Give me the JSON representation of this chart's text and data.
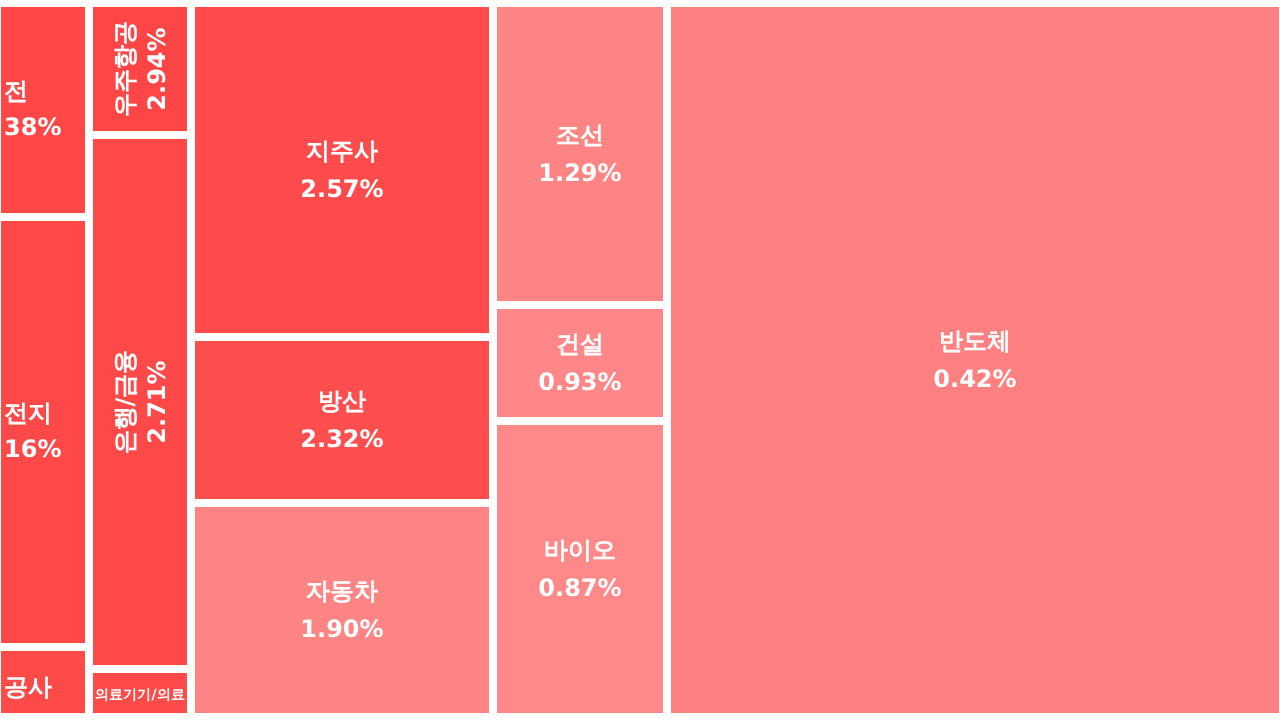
{
  "chart_data": {
    "type": "other",
    "categories": [
      "전",
      "전지",
      "공사",
      "우주항공",
      "은행/금융",
      "의료기기/의료",
      "지주사",
      "방산",
      "자동차",
      "조선",
      "건설",
      "바이오",
      "반도체"
    ],
    "values": [
      null,
      null,
      null,
      2.94,
      2.71,
      null,
      2.57,
      2.32,
      1.9,
      1.29,
      0.93,
      0.87,
      0.42
    ],
    "value_labels": [
      "38%",
      "16%",
      null,
      "2.94%",
      "2.71%",
      null,
      "2.57%",
      "2.32%",
      "1.90%",
      "1.29%",
      "0.93%",
      "0.87%",
      "0.42%"
    ],
    "colors": [
      "#ff4747",
      "#ff4848",
      "#ff4a4a",
      "#ff4545",
      "#ff4848",
      "#ff4a4a",
      "#ff4b4b",
      "#ff4e4e",
      "#ff8585",
      "#ff8585",
      "#ff8787",
      "#ff8888",
      "#ff8080"
    ]
  }
}
